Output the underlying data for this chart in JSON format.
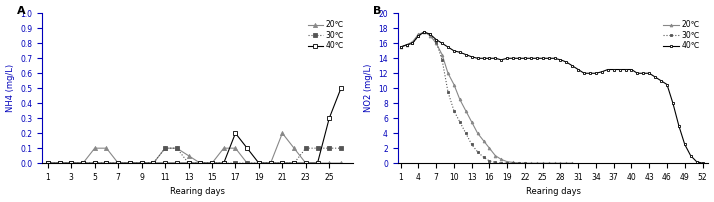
{
  "panel_A": {
    "label": "A",
    "xlabel": "Rearing days",
    "ylabel": "NH4 (mg/L)",
    "ylim": [
      0.0,
      1.0
    ],
    "yticks": [
      0.0,
      0.1,
      0.2,
      0.3,
      0.4,
      0.5,
      0.6,
      0.7,
      0.8,
      0.9,
      1.0
    ],
    "xticks": [
      1,
      3,
      5,
      7,
      9,
      11,
      13,
      15,
      17,
      19,
      21,
      23,
      25
    ],
    "series": [
      {
        "label": "20℃",
        "color": "#888888",
        "linestyle": "-",
        "marker": "^",
        "markersize": 3,
        "markerfilled": true,
        "x": [
          1,
          2,
          3,
          4,
          5,
          6,
          7,
          8,
          9,
          10,
          11,
          12,
          13,
          14,
          15,
          16,
          17,
          18,
          19,
          20,
          21,
          22,
          23,
          24,
          25,
          26
        ],
        "y": [
          0.0,
          0.0,
          0.0,
          0.0,
          0.1,
          0.1,
          0.0,
          0.0,
          0.0,
          0.0,
          0.1,
          0.1,
          0.05,
          0.0,
          0.0,
          0.1,
          0.1,
          0.0,
          0.0,
          0.0,
          0.2,
          0.1,
          0.0,
          0.0,
          0.0,
          0.0
        ]
      },
      {
        "label": "30℃",
        "color": "#555555",
        "linestyle": ":",
        "marker": "s",
        "markersize": 3,
        "markerfilled": true,
        "x": [
          1,
          2,
          3,
          4,
          5,
          6,
          7,
          8,
          9,
          10,
          11,
          12,
          13,
          14,
          15,
          16,
          17,
          18,
          19,
          20,
          21,
          22,
          23,
          24,
          25,
          26
        ],
        "y": [
          0.0,
          0.0,
          0.0,
          0.0,
          0.0,
          0.0,
          0.0,
          0.0,
          0.0,
          0.0,
          0.1,
          0.1,
          0.0,
          0.0,
          0.0,
          0.0,
          0.0,
          0.0,
          0.0,
          0.0,
          0.0,
          0.0,
          0.1,
          0.1,
          0.1,
          0.1
        ]
      },
      {
        "label": "40℃",
        "color": "#000000",
        "linestyle": "-",
        "marker": "s",
        "markersize": 3,
        "markerfilled": false,
        "x": [
          1,
          2,
          3,
          4,
          5,
          6,
          7,
          8,
          9,
          10,
          11,
          12,
          13,
          14,
          15,
          16,
          17,
          18,
          19,
          20,
          21,
          22,
          23,
          24,
          25,
          26
        ],
        "y": [
          0.0,
          0.0,
          0.0,
          0.0,
          0.0,
          0.0,
          0.0,
          0.0,
          0.0,
          0.0,
          0.0,
          0.0,
          0.0,
          0.0,
          0.0,
          0.0,
          0.2,
          0.1,
          0.0,
          0.0,
          0.0,
          0.0,
          0.0,
          0.0,
          0.3,
          0.5
        ]
      }
    ]
  },
  "panel_B": {
    "label": "B",
    "xlabel": "Rearing days",
    "ylabel": "NO2 (mg/L)",
    "ylim": [
      0,
      20
    ],
    "yticks": [
      0,
      2,
      4,
      6,
      8,
      10,
      12,
      14,
      16,
      18,
      20
    ],
    "xticks": [
      1,
      4,
      7,
      10,
      13,
      16,
      19,
      22,
      25,
      28,
      31,
      34,
      37,
      40,
      43,
      46,
      49,
      52
    ],
    "series": [
      {
        "label": "20℃",
        "color": "#888888",
        "linestyle": "-",
        "marker": "^",
        "markersize": 2,
        "markerfilled": true,
        "x": [
          1,
          2,
          3,
          4,
          5,
          6,
          7,
          8,
          9,
          10,
          11,
          12,
          13,
          14,
          15,
          16,
          17,
          18,
          19,
          20,
          21,
          22,
          23,
          24,
          25,
          26,
          27,
          28,
          29,
          30
        ],
        "y": [
          15.5,
          15.8,
          16.2,
          17.2,
          17.5,
          17.0,
          16.0,
          14.5,
          12.0,
          10.5,
          8.5,
          7.0,
          5.5,
          4.0,
          3.0,
          2.0,
          1.0,
          0.5,
          0.2,
          0.1,
          0.0,
          0.0,
          0.0,
          0.0,
          0.0,
          0.0,
          0.0,
          0.0,
          0.0,
          0.0
        ]
      },
      {
        "label": "30℃",
        "color": "#555555",
        "linestyle": ":",
        "marker": "s",
        "markersize": 2,
        "markerfilled": true,
        "x": [
          1,
          2,
          3,
          4,
          5,
          6,
          7,
          8,
          9,
          10,
          11,
          12,
          13,
          14,
          15,
          16,
          17,
          18,
          19,
          20,
          21,
          22
        ],
        "y": [
          15.5,
          15.8,
          16.0,
          17.0,
          17.5,
          17.2,
          16.2,
          13.8,
          9.5,
          7.0,
          5.5,
          4.0,
          2.5,
          1.5,
          0.8,
          0.3,
          0.1,
          0.0,
          0.0,
          0.0,
          0.0,
          0.0
        ]
      },
      {
        "label": "40℃",
        "color": "#000000",
        "linestyle": "-",
        "marker": "s",
        "markersize": 2,
        "markerfilled": false,
        "x": [
          1,
          2,
          3,
          4,
          5,
          6,
          7,
          8,
          9,
          10,
          11,
          12,
          13,
          14,
          15,
          16,
          17,
          18,
          19,
          20,
          21,
          22,
          23,
          24,
          25,
          26,
          27,
          28,
          29,
          30,
          31,
          32,
          33,
          34,
          35,
          36,
          37,
          38,
          39,
          40,
          41,
          42,
          43,
          44,
          45,
          46,
          47,
          48,
          49,
          50,
          51,
          52
        ],
        "y": [
          15.5,
          15.8,
          16.0,
          17.0,
          17.5,
          17.2,
          16.5,
          16.0,
          15.5,
          15.0,
          14.8,
          14.5,
          14.2,
          14.0,
          14.0,
          14.0,
          14.0,
          13.8,
          14.0,
          14.0,
          14.0,
          14.0,
          14.0,
          14.0,
          14.0,
          14.0,
          14.0,
          13.8,
          13.5,
          13.0,
          12.5,
          12.0,
          12.0,
          12.0,
          12.2,
          12.5,
          12.5,
          12.5,
          12.5,
          12.5,
          12.0,
          12.0,
          12.0,
          11.5,
          11.0,
          10.5,
          8.0,
          5.0,
          2.5,
          1.0,
          0.2,
          0.0
        ]
      }
    ]
  },
  "axis_color": "#0000bb",
  "text_color": "#000000",
  "spine_color": "#000000",
  "label_fontsize": 6,
  "title_fontsize": 8,
  "legend_fontsize": 5.5,
  "tick_fontsize": 5.5
}
